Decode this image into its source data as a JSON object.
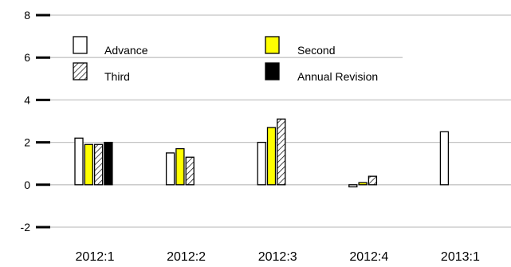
{
  "chart_data": {
    "type": "bar",
    "title": "",
    "xlabel": "",
    "ylabel": "",
    "ylim": [
      -2,
      8
    ],
    "yticks": [
      -2,
      0,
      2,
      4,
      6,
      8
    ],
    "grid": true,
    "legend_placement": "top-left",
    "categories": [
      "2012:1",
      "2012:2",
      "2012:3",
      "2012:4",
      "2013:1"
    ],
    "series": [
      {
        "name": "Advance",
        "fill": "#ffffff",
        "pattern": "none",
        "values": [
          2.2,
          1.5,
          2.0,
          -0.1,
          2.5
        ]
      },
      {
        "name": "Second",
        "fill": "#ffff00",
        "pattern": "none",
        "values": [
          1.9,
          1.7,
          2.7,
          0.1,
          null
        ]
      },
      {
        "name": "Third",
        "fill": "#ffffff",
        "pattern": "hatch",
        "values": [
          1.9,
          1.3,
          3.1,
          0.4,
          null
        ]
      },
      {
        "name": "Annual Revision",
        "fill": "#000000",
        "pattern": "none",
        "values": [
          2.0,
          null,
          null,
          null,
          null
        ]
      }
    ]
  }
}
